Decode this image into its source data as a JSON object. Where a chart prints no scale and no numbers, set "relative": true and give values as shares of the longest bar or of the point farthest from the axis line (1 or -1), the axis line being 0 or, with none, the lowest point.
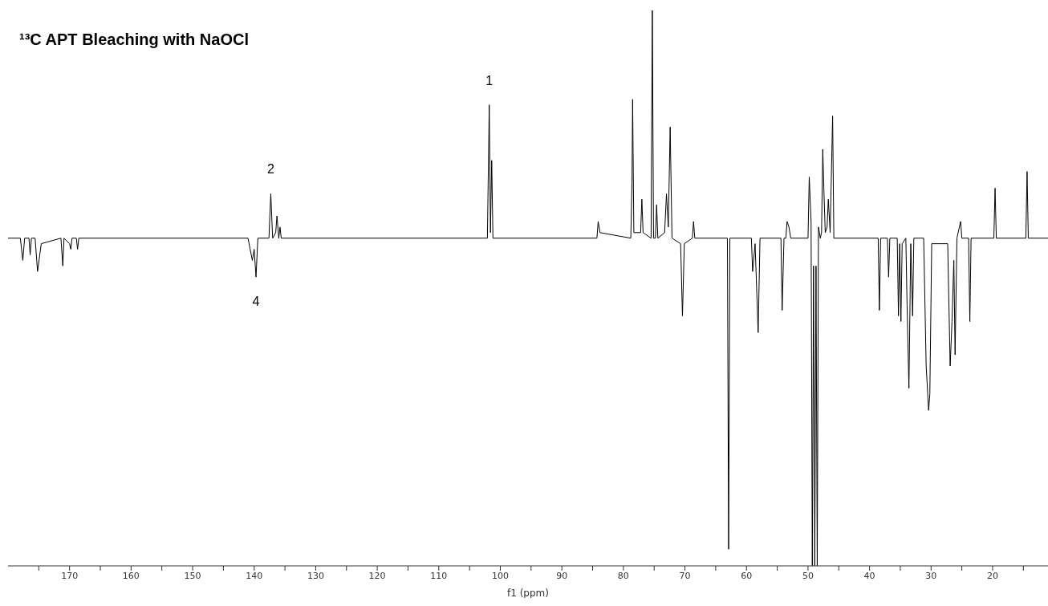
{
  "chart_data": {
    "type": "line",
    "title": "¹³C APT Bleaching with NaOCl",
    "xlabel": "f1 (ppm)",
    "relative": true,
    "tick_labels": "x",
    "xlim": [
      180,
      11
    ],
    "xticks": [
      {
        "value": 175,
        "label": null
      },
      170,
      {
        "value": 165,
        "label": null
      },
      160,
      {
        "value": 155,
        "label": null
      },
      150,
      {
        "value": 145,
        "label": null
      },
      140,
      {
        "value": 135,
        "label": null
      },
      130,
      {
        "value": 125,
        "label": null
      },
      120,
      {
        "value": 115,
        "label": null
      },
      110,
      {
        "value": 105,
        "label": null
      },
      100,
      {
        "value": 95,
        "label": null
      },
      90,
      {
        "value": 85,
        "label": null
      },
      80,
      {
        "value": 75,
        "label": null
      },
      70,
      {
        "value": 65,
        "label": null
      },
      60,
      {
        "value": 55,
        "label": null
      },
      50,
      {
        "value": 45,
        "label": null
      },
      40,
      {
        "value": 35,
        "label": null
      },
      30,
      {
        "value": 25,
        "label": null
      },
      20,
      {
        "value": 15,
        "label": null
      }
    ],
    "annotations": [
      {
        "text": "1",
        "x": 101.8,
        "y": 0.83
      },
      {
        "text": "2",
        "x": 137.3,
        "y": 0.67
      },
      {
        "text": "4",
        "x": 139.7,
        "y": 0.52
      }
    ],
    "series": [
      {
        "color": "#000000",
        "x": [
          180,
          178.0,
          177.6,
          177.3,
          176.6,
          176.4,
          176.2,
          175.6,
          175.2,
          174.6,
          171.4,
          171.1,
          170.9,
          170.0,
          169.8,
          169.6,
          168.9,
          168.7,
          168.5,
          141,
          140.3,
          140.0,
          139.7,
          139.4,
          137.6,
          137.3,
          137.0,
          136.5,
          136.3,
          136.0,
          135.8,
          135.6,
          102.1,
          101.8,
          101.6,
          101.4,
          101.2,
          84.3,
          84.1,
          83.8,
          78.8,
          78.6,
          78.5,
          78.3,
          77.2,
          77.0,
          76.8,
          75.5,
          75.3,
          75.1,
          74.8,
          74.6,
          74.4,
          73.3,
          73.0,
          72.7,
          72.4,
          72.1,
          70.7,
          70.4,
          70.1,
          68.8,
          68.6,
          68.4,
          63.1,
          62.9,
          62.7,
          59.2,
          59.0,
          58.6,
          58.1,
          57.8,
          54.4,
          54.2,
          53.9,
          53.6,
          53.4,
          53.1,
          52.8,
          50.0,
          49.8,
          49.5,
          49.3,
          49.1,
          48.9,
          48.7,
          48.5,
          48.3,
          48.0,
          47.8,
          47.6,
          47.4,
          47.2,
          46.9,
          46.7,
          46.4,
          46.0,
          45.8,
          38.6,
          38.4,
          38.2,
          37.1,
          36.9,
          36.7,
          35.5,
          35.3,
          35.1,
          34.9,
          34.7,
          34.1,
          33.9,
          33.6,
          33.3,
          33.0,
          32.8,
          31.2,
          30.8,
          30.4,
          30.2,
          29.9,
          27.3,
          26.9,
          26.6,
          26.3,
          26.1,
          25.8,
          25.2,
          25.0,
          23.9,
          23.7,
          23.5,
          19.8,
          19.6,
          19.4,
          14.6,
          14.4,
          14.2,
          11
        ],
        "values": [
          0.59,
          0.59,
          0.55,
          0.59,
          0.59,
          0.56,
          0.59,
          0.59,
          0.53,
          0.58,
          0.59,
          0.54,
          0.59,
          0.58,
          0.57,
          0.59,
          0.59,
          0.57,
          0.59,
          0.59,
          0.55,
          0.57,
          0.52,
          0.59,
          0.59,
          0.67,
          0.59,
          0.6,
          0.63,
          0.59,
          0.61,
          0.59,
          0.59,
          0.83,
          0.6,
          0.73,
          0.59,
          0.59,
          0.62,
          0.6,
          0.59,
          0.69,
          0.84,
          0.6,
          0.6,
          0.66,
          0.6,
          0.59,
          1,
          0.59,
          0.59,
          0.65,
          0.59,
          0.6,
          0.67,
          0.61,
          0.79,
          0.59,
          0.58,
          0.45,
          0.58,
          0.59,
          0.62,
          0.59,
          0.59,
          0.03,
          0.59,
          0.59,
          0.53,
          0.58,
          0.42,
          0.59,
          0.59,
          0.46,
          0.59,
          0.59,
          0.62,
          0.61,
          0.59,
          0.59,
          0.7,
          0.62,
          0,
          0.54,
          0,
          0.54,
          0,
          0.61,
          0.59,
          0.6,
          0.75,
          0.67,
          0.6,
          0.61,
          0.66,
          0.6,
          0.81,
          0.59,
          0.59,
          0.46,
          0.59,
          0.59,
          0.52,
          0.59,
          0.59,
          0.45,
          0.58,
          0.44,
          0.58,
          0.59,
          0.47,
          0.32,
          0.58,
          0.45,
          0.59,
          0.59,
          0.36,
          0.28,
          0.31,
          0.58,
          0.58,
          0.36,
          0.44,
          0.55,
          0.38,
          0.59,
          0.62,
          0.59,
          0.59,
          0.44,
          0.59,
          0.59,
          0.68,
          0.59,
          0.59,
          0.71,
          0.59,
          0.59
        ]
      }
    ]
  }
}
